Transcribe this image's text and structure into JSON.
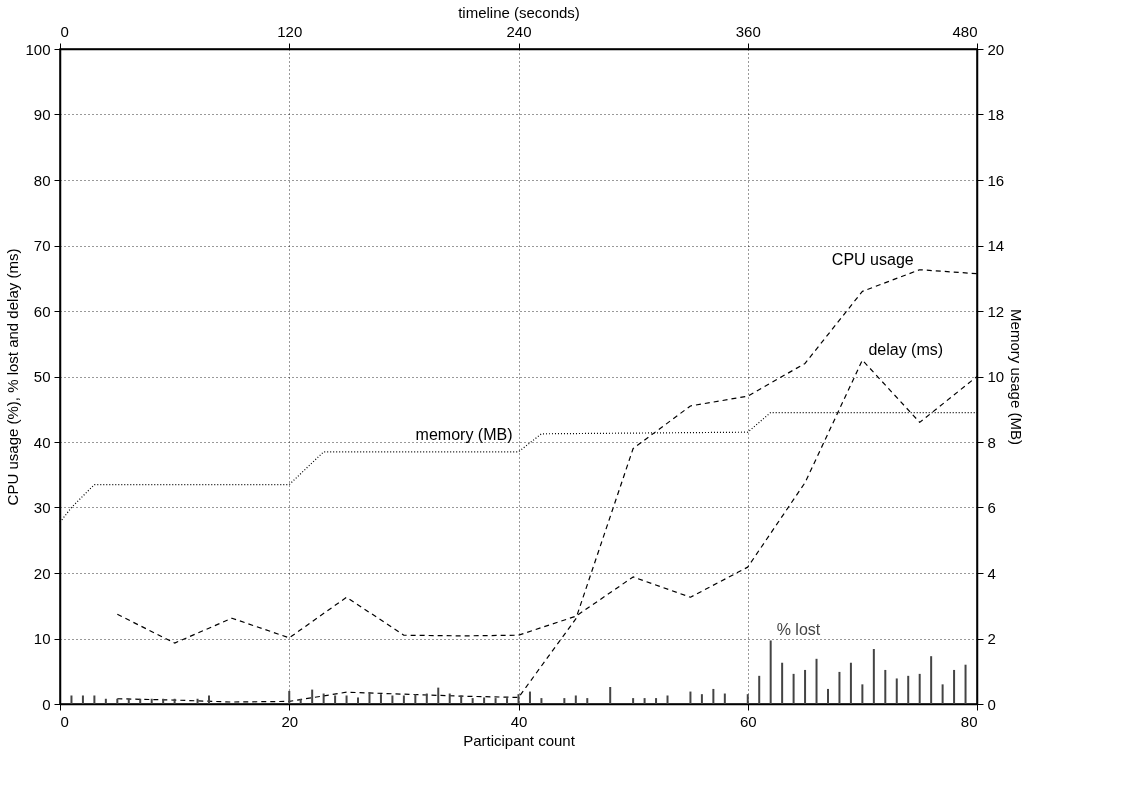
{
  "chart_data": {
    "type": "line",
    "xlabel": "Participant count",
    "ylabel": "CPU usage (%), % lost and delay (ms)",
    "y2label": "Memory usage (MB)",
    "x2label": "timeline (seconds)",
    "xlim": [
      0,
      80
    ],
    "xticks": [
      0,
      20,
      40,
      60,
      80
    ],
    "x2lim": [
      0,
      480
    ],
    "x2ticks": [
      0,
      120,
      240,
      360,
      480
    ],
    "ylim": [
      0,
      100
    ],
    "yticks": [
      0,
      10,
      20,
      30,
      40,
      50,
      60,
      70,
      80,
      90,
      100
    ],
    "y2lim": [
      0,
      20
    ],
    "y2ticks": [
      0,
      2,
      4,
      6,
      8,
      10,
      12,
      14,
      16,
      18,
      20
    ],
    "grid": true,
    "series": [
      {
        "name": "CPU usage",
        "line_style": "dashed",
        "color": "#000000",
        "x": [
          5,
          10,
          15,
          20,
          25,
          30,
          35,
          40,
          45,
          50,
          55,
          60,
          65,
          70,
          75,
          80
        ],
        "values": [
          0.8,
          0.6,
          0.3,
          0.4,
          1.8,
          1.5,
          1.2,
          1.0,
          13,
          39,
          45.5,
          47,
          52,
          63,
          66.3,
          65.7
        ]
      },
      {
        "name": "delay (ms)",
        "line_style": "dashed",
        "color": "#000000",
        "x": [
          5,
          10,
          15,
          20,
          25,
          30,
          35,
          40,
          45,
          50,
          55,
          60,
          65,
          70,
          75,
          80
        ],
        "values": [
          13.7,
          9.3,
          13.1,
          10.1,
          16.3,
          10.5,
          10.4,
          10.5,
          13.4,
          19.4,
          16.3,
          20.9,
          33.8,
          52.5,
          43,
          50
        ]
      },
      {
        "name": "memory (MB)",
        "line_style": "dotted",
        "axis": "y2",
        "color": "#000000",
        "x": [
          0,
          1,
          3,
          20,
          23,
          40,
          42,
          60,
          61,
          62,
          80
        ],
        "values": [
          5.55,
          6.0,
          6.7,
          6.7,
          7.7,
          7.7,
          8.25,
          8.3,
          8.6,
          8.9,
          8.9
        ]
      },
      {
        "name": "% lost",
        "type": "bar",
        "color": "#444444",
        "x": [
          1,
          2,
          3,
          4,
          5,
          6,
          7,
          8,
          9,
          10,
          12,
          13,
          20,
          21,
          22,
          23,
          24,
          25,
          26,
          27,
          28,
          29,
          30,
          31,
          32,
          33,
          34,
          35,
          36,
          37,
          38,
          39,
          40,
          41,
          42,
          44,
          45,
          46,
          48,
          50,
          51,
          52,
          53,
          55,
          56,
          57,
          58,
          60,
          61,
          62,
          63,
          64,
          65,
          66,
          67,
          68,
          69,
          70,
          71,
          72,
          73,
          74,
          75,
          76,
          77,
          78,
          79
        ],
        "values": [
          1.3,
          1.3,
          1.3,
          0.8,
          0.8,
          0.8,
          0.8,
          0.8,
          0.8,
          0.8,
          0.8,
          1.3,
          2.0,
          0.8,
          2.2,
          1.6,
          1.3,
          1.3,
          1.0,
          1.8,
          1.5,
          1.3,
          1.3,
          1.5,
          1.6,
          2.5,
          1.6,
          1.3,
          0.9,
          1.0,
          0.9,
          0.9,
          1.5,
          1.9,
          0.9,
          0.9,
          1.3,
          0.9,
          2.6,
          0.9,
          0.9,
          0.9,
          1.3,
          1.9,
          1.5,
          2.3,
          1.6,
          1.5,
          4.3,
          9.7,
          6.3,
          4.6,
          5.2,
          6.9,
          2.3,
          4.9,
          6.3,
          3.0,
          8.4,
          5.2,
          3.9,
          4.3,
          4.6,
          7.3,
          3.0,
          5.2,
          6.0
        ]
      }
    ]
  }
}
